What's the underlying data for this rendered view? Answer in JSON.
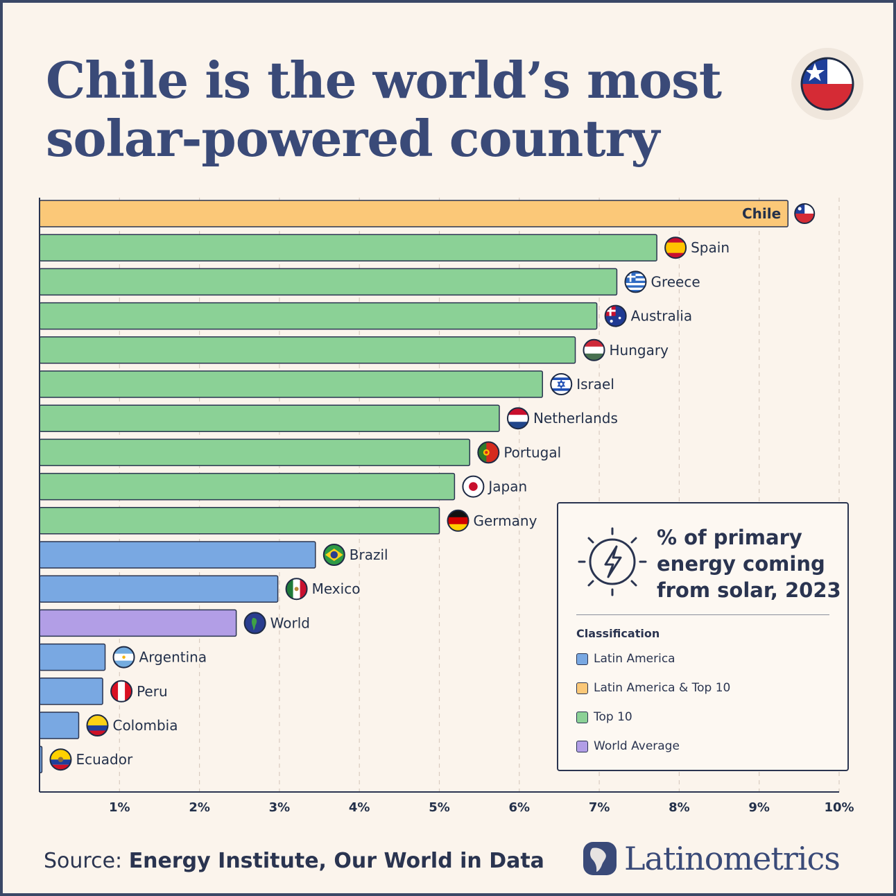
{
  "title": {
    "line1": "Chile is the world’s most",
    "line2": "solar-powered country"
  },
  "header_flag_icon": "chile-flag-icon",
  "legend": {
    "title_line1": "% of primary",
    "title_line2": "energy coming",
    "title_line3": "from solar, 2023",
    "icon": "sun-lightning-icon",
    "heading": "Classification",
    "items": [
      {
        "label": "Latin America",
        "color": "#79a8e2"
      },
      {
        "label": "Latin America & Top 10",
        "color": "#fbc878"
      },
      {
        "label": "Top 10",
        "color": "#8bd196"
      },
      {
        "label": "World Average",
        "color": "#b29ee6"
      }
    ]
  },
  "source": {
    "prefix": "Source: ",
    "text": "Energy Institute, Our World in Data"
  },
  "brand": {
    "name": "Latinometrics",
    "icon": "latinometrics-logo-icon"
  },
  "chart_data": {
    "type": "bar",
    "orientation": "horizontal",
    "xlim": [
      0,
      10
    ],
    "xticks": [
      "1%",
      "2%",
      "3%",
      "4%",
      "5%",
      "6%",
      "7%",
      "8%",
      "9%",
      "10%"
    ],
    "grid": "vertical dashed",
    "categories": [
      "Chile",
      "Spain",
      "Greece",
      "Australia",
      "Hungary",
      "Israel",
      "Netherlands",
      "Portugal",
      "Japan",
      "Germany",
      "Brazil",
      "Mexico",
      "World",
      "Argentina",
      "Peru",
      "Colombia",
      "Ecuador"
    ],
    "values": [
      9.36,
      7.72,
      7.22,
      6.97,
      6.7,
      6.29,
      5.75,
      5.38,
      5.19,
      5.0,
      3.45,
      2.98,
      2.46,
      0.82,
      0.79,
      0.49,
      0.03
    ],
    "classification": [
      "Latin America & Top 10",
      "Top 10",
      "Top 10",
      "Top 10",
      "Top 10",
      "Top 10",
      "Top 10",
      "Top 10",
      "Top 10",
      "Top 10",
      "Latin America",
      "Latin America",
      "World Average",
      "Latin America",
      "Latin America",
      "Latin America",
      "Latin America"
    ],
    "flag_icons": [
      "chile-flag-icon",
      "spain-flag-icon",
      "greece-flag-icon",
      "australia-flag-icon",
      "hungary-flag-icon",
      "israel-flag-icon",
      "netherlands-flag-icon",
      "portugal-flag-icon",
      "japan-flag-icon",
      "germany-flag-icon",
      "brazil-flag-icon",
      "mexico-flag-icon",
      "globe-icon",
      "argentina-flag-icon",
      "peru-flag-icon",
      "colombia-flag-icon",
      "ecuador-flag-icon"
    ]
  }
}
